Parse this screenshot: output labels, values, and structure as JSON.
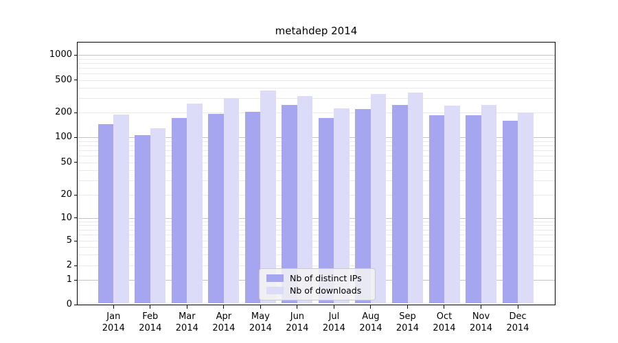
{
  "title": "metahdep 2014",
  "chart_data": {
    "type": "bar",
    "title": "metahdep 2014",
    "xlabel": "",
    "ylabel": "",
    "x_months": [
      "Jan",
      "Feb",
      "Mar",
      "Apr",
      "May",
      "Jun",
      "Jul",
      "Aug",
      "Sep",
      "Oct",
      "Nov",
      "Dec"
    ],
    "x_year": "2014",
    "series": [
      {
        "name": "Nb of distinct IPs",
        "color": "#a5a5f0",
        "values": [
          145,
          107,
          172,
          195,
          205,
          248,
          172,
          220,
          248,
          185,
          185,
          160
        ]
      },
      {
        "name": "Nb of downloads",
        "color": "#dcdcf8",
        "values": [
          190,
          130,
          260,
          300,
          370,
          320,
          225,
          340,
          355,
          242,
          248,
          200
        ]
      }
    ],
    "y_axis": {
      "scale": "symlog",
      "tick_values": [
        0,
        1,
        2,
        5,
        10,
        20,
        50,
        100,
        200,
        500,
        1000
      ],
      "tick_labels": [
        "0",
        "1",
        "2",
        "5",
        "10",
        "20",
        "50",
        "100",
        "200",
        "500",
        "1000"
      ],
      "major_gridlines": [
        1,
        10,
        100,
        1000
      ],
      "minor_gridlines": [
        2,
        3,
        4,
        5,
        6,
        7,
        8,
        9,
        20,
        30,
        40,
        50,
        60,
        70,
        80,
        90,
        200,
        300,
        400,
        500,
        600,
        700,
        800,
        900
      ],
      "ylim": [
        0,
        1400
      ]
    },
    "grid": true,
    "legend_position": "lower center"
  }
}
